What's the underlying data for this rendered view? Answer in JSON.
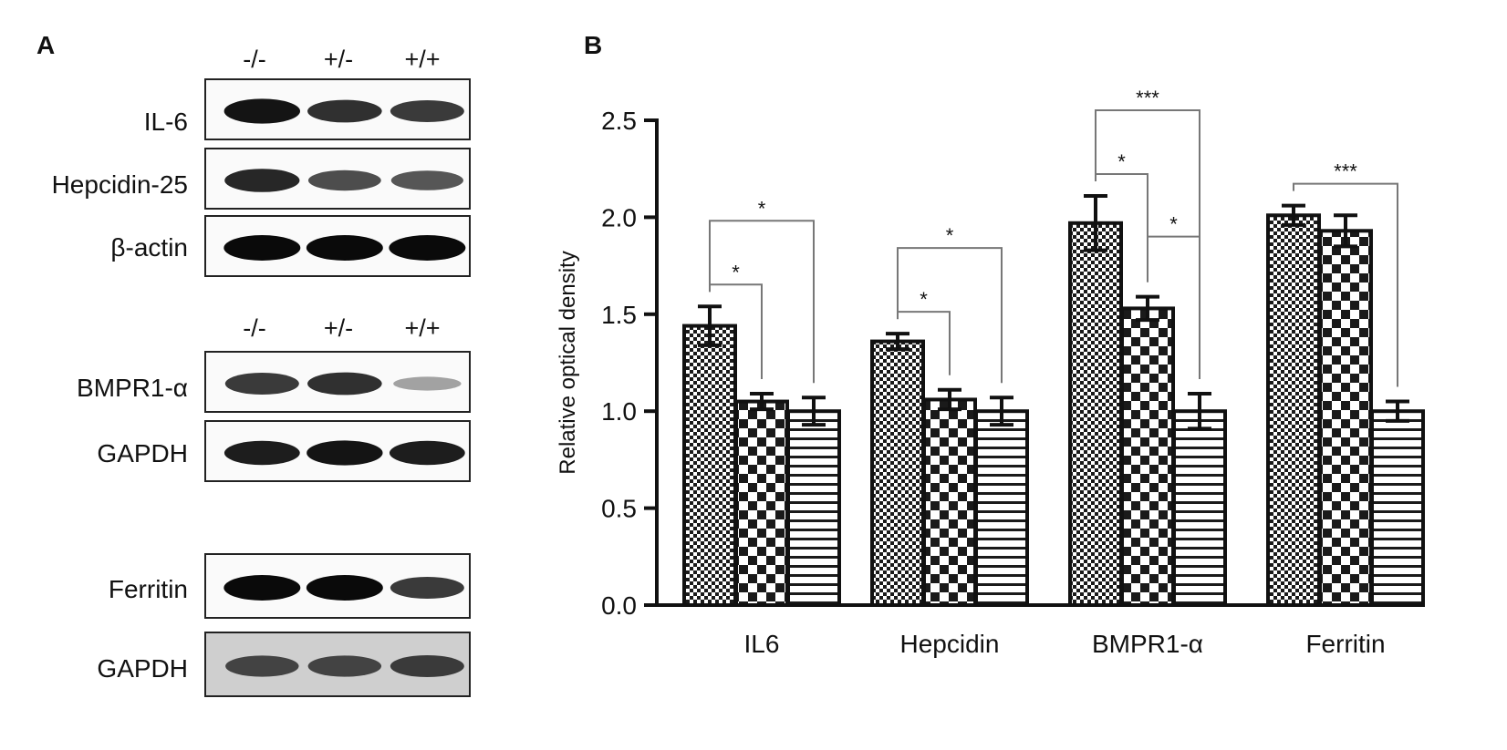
{
  "panel_a": {
    "letter": "A",
    "group1": {
      "lanes": [
        "-/-",
        "+/-",
        "+/+"
      ],
      "blots": [
        {
          "label": "IL-6",
          "band_strength": [
            0.95,
            0.8,
            0.75
          ]
        },
        {
          "label": "Hepcidin-25",
          "band_strength": [
            0.85,
            0.65,
            0.6
          ]
        },
        {
          "label": "β-actin",
          "band_strength": [
            1.0,
            1.0,
            1.0
          ]
        }
      ]
    },
    "group2": {
      "lanes": [
        "-/-",
        "+/-",
        "+/+"
      ],
      "blots": [
        {
          "label": "BMPR1-α",
          "band_strength": [
            0.75,
            0.8,
            0.2
          ]
        },
        {
          "label": "GAPDH",
          "band_strength": [
            0.9,
            0.95,
            0.9
          ]
        }
      ]
    },
    "group3": {
      "blots": [
        {
          "label": "Ferritin",
          "band_strength": [
            1.0,
            1.0,
            0.75
          ]
        },
        {
          "label": "GAPDH",
          "band_strength": [
            0.7,
            0.7,
            0.75
          ]
        }
      ]
    }
  },
  "panel_b": {
    "letter": "B"
  },
  "chart_data": {
    "type": "bar",
    "categories": [
      "IL6",
      "Hepcidin",
      "BMPR1-α",
      "Ferritin"
    ],
    "series": [
      {
        "pattern": "fine-check",
        "values": [
          1.44,
          1.36,
          1.97,
          2.01
        ],
        "errors": [
          0.1,
          0.04,
          0.14,
          0.05
        ]
      },
      {
        "pattern": "coarse-check",
        "values": [
          1.05,
          1.06,
          1.53,
          1.93
        ],
        "errors": [
          0.04,
          0.05,
          0.06,
          0.08
        ]
      },
      {
        "pattern": "horizontal-stripes",
        "values": [
          1.0,
          1.0,
          1.0,
          1.0
        ],
        "errors": [
          0.07,
          0.07,
          0.09,
          0.05
        ]
      }
    ],
    "ylabel": "Relative optical density",
    "ylim": [
      0,
      2.5
    ],
    "yticks": [
      "0.0",
      "0.5",
      "1.0",
      "1.5",
      "2.0",
      "2.5"
    ],
    "grid": false,
    "legend": "none",
    "significance": [
      {
        "category": 0,
        "from": 0,
        "to": 1,
        "label": "*",
        "level": 0
      },
      {
        "category": 0,
        "from": 0,
        "to": 2,
        "label": "*",
        "level": 1
      },
      {
        "category": 1,
        "from": 0,
        "to": 1,
        "label": "*",
        "level": 0
      },
      {
        "category": 1,
        "from": 0,
        "to": 2,
        "label": "*",
        "level": 1
      },
      {
        "category": 2,
        "from": 0,
        "to": 1,
        "label": "*",
        "level": 0
      },
      {
        "category": 2,
        "from": 1,
        "to": 2,
        "label": "*",
        "level": 0.6
      },
      {
        "category": 2,
        "from": 0,
        "to": 2,
        "label": "***",
        "level": 1
      },
      {
        "category": 3,
        "from": 0,
        "to": 2,
        "label": "***",
        "level": 0
      }
    ]
  }
}
